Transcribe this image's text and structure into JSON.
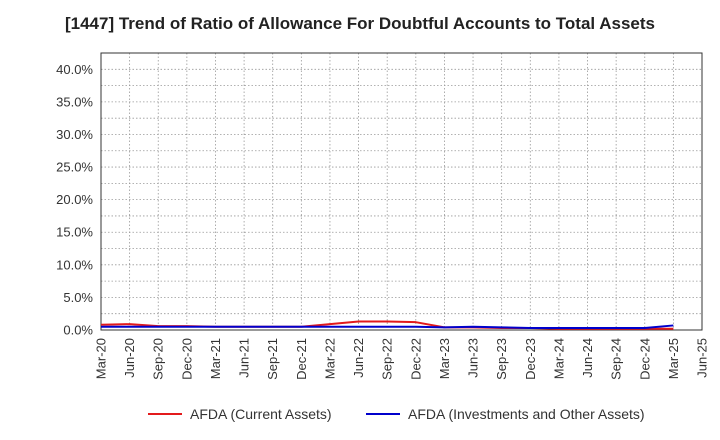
{
  "chart_data": {
    "type": "line",
    "title": "[1447]  Trend of Ratio of Allowance For Doubtful Accounts to Total Assets",
    "xlabel": "",
    "ylabel": "",
    "x": [
      "Mar-20",
      "Jun-20",
      "Sep-20",
      "Dec-20",
      "Mar-21",
      "Jun-21",
      "Sep-21",
      "Dec-21",
      "Mar-22",
      "Jun-22",
      "Sep-22",
      "Dec-22",
      "Mar-23",
      "Jun-23",
      "Sep-23",
      "Dec-23",
      "Mar-24",
      "Jun-24",
      "Sep-24",
      "Dec-24",
      "Mar-25",
      "Jun-25"
    ],
    "y_ticks": [
      "0.0%",
      "5.0%",
      "10.0%",
      "15.0%",
      "20.0%",
      "25.0%",
      "30.0%",
      "35.0%",
      "40.0%"
    ],
    "ylim": [
      0,
      42.5
    ],
    "grid": true,
    "legend_position": "bottom",
    "series": [
      {
        "name": "AFDA (Current Assets)",
        "color": "#e31a1c",
        "values": [
          0.8,
          0.9,
          0.6,
          0.6,
          0.5,
          0.5,
          0.5,
          0.5,
          0.9,
          1.3,
          1.3,
          1.2,
          0.4,
          0.4,
          0.3,
          0.3,
          0.2,
          0.2,
          0.2,
          0.2,
          0.2,
          null
        ]
      },
      {
        "name": "AFDA (Investments and Other Assets)",
        "color": "#0000cc",
        "values": [
          0.5,
          0.5,
          0.5,
          0.5,
          0.5,
          0.5,
          0.5,
          0.5,
          0.5,
          0.5,
          0.5,
          0.5,
          0.4,
          0.5,
          0.4,
          0.3,
          0.3,
          0.3,
          0.3,
          0.3,
          0.7,
          null
        ]
      }
    ]
  }
}
